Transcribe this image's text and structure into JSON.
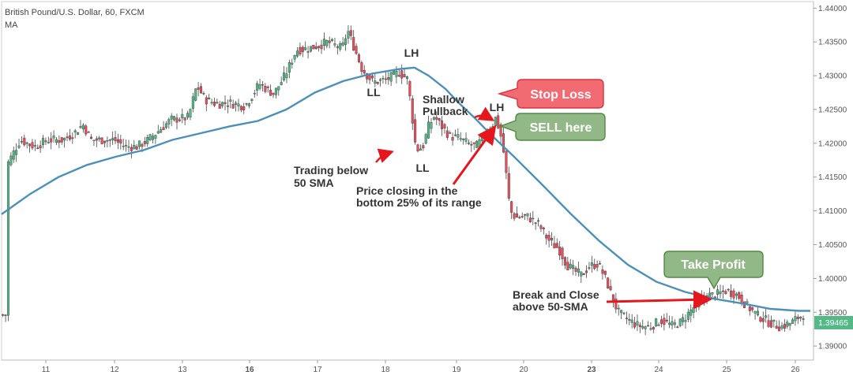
{
  "chart_data": {
    "type": "candlestick",
    "title": "British Pound/U.S. Dollar, 60, FXCM",
    "indicator_label": "MA",
    "ylim": [
      1.3885,
      1.4405
    ],
    "grid": false,
    "y_ticks": [
      "1.44000",
      "1.43500",
      "1.43000",
      "1.42500",
      "1.42000",
      "1.41500",
      "1.41000",
      "1.40500",
      "1.40000",
      "1.39500",
      "1.39000"
    ],
    "y_tick_values": [
      1.44,
      1.435,
      1.43,
      1.425,
      1.42,
      1.415,
      1.41,
      1.405,
      1.4,
      1.395,
      1.39
    ],
    "x_ticks": [
      "11",
      "12",
      "13",
      "16",
      "17",
      "18",
      "19",
      "20",
      "23",
      "24",
      "25",
      "26"
    ],
    "x_bold_ticks": [
      "16",
      "23"
    ],
    "last_price": "1.39465",
    "price_path": [
      [
        10.1,
        1.4165
      ],
      [
        10.35,
        1.4205
      ],
      [
        10.6,
        1.4195
      ],
      [
        10.85,
        1.4205
      ],
      [
        11.1,
        1.4205
      ],
      [
        11.3,
        1.4215
      ],
      [
        11.45,
        1.4228
      ],
      [
        11.6,
        1.4205
      ],
      [
        11.8,
        1.4205
      ],
      [
        12.0,
        1.4205
      ],
      [
        12.2,
        1.4195
      ],
      [
        12.4,
        1.4195
      ],
      [
        12.6,
        1.4205
      ],
      [
        12.8,
        1.422
      ],
      [
        13.0,
        1.4235
      ],
      [
        13.3,
        1.4238
      ],
      [
        13.45,
        1.4285
      ],
      [
        13.6,
        1.4265
      ],
      [
        13.8,
        1.4258
      ],
      [
        14.0,
        1.426
      ],
      [
        14.3,
        1.4255
      ],
      [
        14.55,
        1.4288
      ],
      [
        14.8,
        1.4273
      ],
      [
        15.0,
        1.43
      ],
      [
        15.2,
        1.4338
      ],
      [
        15.4,
        1.434
      ],
      [
        15.6,
        1.4345
      ],
      [
        15.75,
        1.435
      ],
      [
        16.0,
        1.434
      ],
      [
        16.1,
        1.4367
      ],
      [
        16.2,
        1.4345
      ],
      [
        16.35,
        1.431
      ],
      [
        16.55,
        1.429
      ],
      [
        16.8,
        1.4295
      ],
      [
        17.0,
        1.4305
      ],
      [
        17.15,
        1.4295
      ],
      [
        17.22,
        1.4248
      ],
      [
        17.3,
        1.419
      ],
      [
        17.42,
        1.4195
      ],
      [
        17.52,
        1.4225
      ],
      [
        17.62,
        1.424
      ],
      [
        17.75,
        1.4225
      ],
      [
        17.9,
        1.421
      ],
      [
        18.05,
        1.4208
      ],
      [
        18.2,
        1.42
      ],
      [
        18.35,
        1.4195
      ],
      [
        18.45,
        1.4205
      ],
      [
        18.52,
        1.4215
      ],
      [
        18.6,
        1.422
      ],
      [
        18.7,
        1.4238
      ],
      [
        18.78,
        1.4215
      ],
      [
        18.85,
        1.418
      ],
      [
        18.95,
        1.41
      ],
      [
        19.05,
        1.409
      ],
      [
        19.25,
        1.4092
      ],
      [
        19.45,
        1.408
      ],
      [
        19.6,
        1.406
      ],
      [
        19.7,
        1.405
      ],
      [
        19.8,
        1.4045
      ],
      [
        19.95,
        1.402
      ],
      [
        20.1,
        1.401
      ],
      [
        20.2,
        1.4005
      ],
      [
        20.35,
        1.4018
      ],
      [
        20.5,
        1.4022
      ],
      [
        20.65,
        1.3995
      ],
      [
        20.75,
        1.397
      ],
      [
        20.85,
        1.395
      ],
      [
        21.0,
        1.394
      ],
      [
        21.2,
        1.393
      ],
      [
        21.4,
        1.3928
      ],
      [
        21.6,
        1.3938
      ],
      [
        21.8,
        1.393
      ],
      [
        21.95,
        1.3935
      ],
      [
        22.05,
        1.3945
      ],
      [
        22.2,
        1.396
      ],
      [
        22.4,
        1.3975
      ],
      [
        22.55,
        1.3975
      ],
      [
        22.75,
        1.3982
      ],
      [
        22.95,
        1.3975
      ],
      [
        23.1,
        1.396
      ],
      [
        23.3,
        1.3945
      ],
      [
        23.5,
        1.3935
      ],
      [
        23.7,
        1.3928
      ],
      [
        23.9,
        1.3935
      ],
      [
        24.0,
        1.3942
      ],
      [
        24.1,
        1.3946
      ]
    ],
    "ma_path": [
      [
        10.0,
        1.4095
      ],
      [
        10.5,
        1.4125
      ],
      [
        11.0,
        1.415
      ],
      [
        11.5,
        1.4168
      ],
      [
        12.0,
        1.418
      ],
      [
        12.5,
        1.419
      ],
      [
        13.0,
        1.4205
      ],
      [
        13.5,
        1.4215
      ],
      [
        14.0,
        1.4225
      ],
      [
        14.5,
        1.4233
      ],
      [
        15.0,
        1.425
      ],
      [
        15.5,
        1.4275
      ],
      [
        16.0,
        1.4292
      ],
      [
        16.5,
        1.4303
      ],
      [
        17.0,
        1.431
      ],
      [
        17.25,
        1.4312
      ],
      [
        17.5,
        1.43
      ],
      [
        17.8,
        1.428
      ],
      [
        18.0,
        1.4262
      ],
      [
        18.3,
        1.4238
      ],
      [
        18.6,
        1.4212
      ],
      [
        19.0,
        1.418
      ],
      [
        19.5,
        1.4138
      ],
      [
        20.0,
        1.4095
      ],
      [
        20.5,
        1.4055
      ],
      [
        21.0,
        1.402
      ],
      [
        21.5,
        1.3995
      ],
      [
        22.0,
        1.398
      ],
      [
        22.5,
        1.397
      ],
      [
        23.0,
        1.3963
      ],
      [
        23.5,
        1.3955
      ],
      [
        24.0,
        1.3952
      ],
      [
        24.2,
        1.3952
      ]
    ],
    "annotations": {
      "lh_top": "LH",
      "lh_right": "LH",
      "ll_upper": "LL",
      "ll_lower": "LL",
      "shallow_pullback_line1": "Shallow",
      "shallow_pullback_line2": "Pullback",
      "trading_below_line1": "Trading below",
      "trading_below_line2": "50 SMA",
      "price_closing_line1": "Price closing in the",
      "price_closing_line2": "bottom 25% of its range",
      "break_close_line1": "Break and Close",
      "break_close_line2": "above 50-SMA"
    },
    "callouts": {
      "stop_loss": "Stop Loss",
      "sell_here": "SELL here",
      "take_profit": "Take Profit"
    },
    "colors": {
      "bull": "#53b987",
      "bear": "#eb4d5c",
      "wick": "#444444",
      "ma": "#4a90b8",
      "stop_loss_fill": "#f26b73",
      "stop_loss_stroke": "#d9323f",
      "sell_fill": "#93b887",
      "sell_stroke": "#4f8a3f",
      "take_profit_fill": "#93b887",
      "take_profit_stroke": "#4f8a3f",
      "arrow": "#e5161c",
      "price_label": "#53b987"
    }
  }
}
